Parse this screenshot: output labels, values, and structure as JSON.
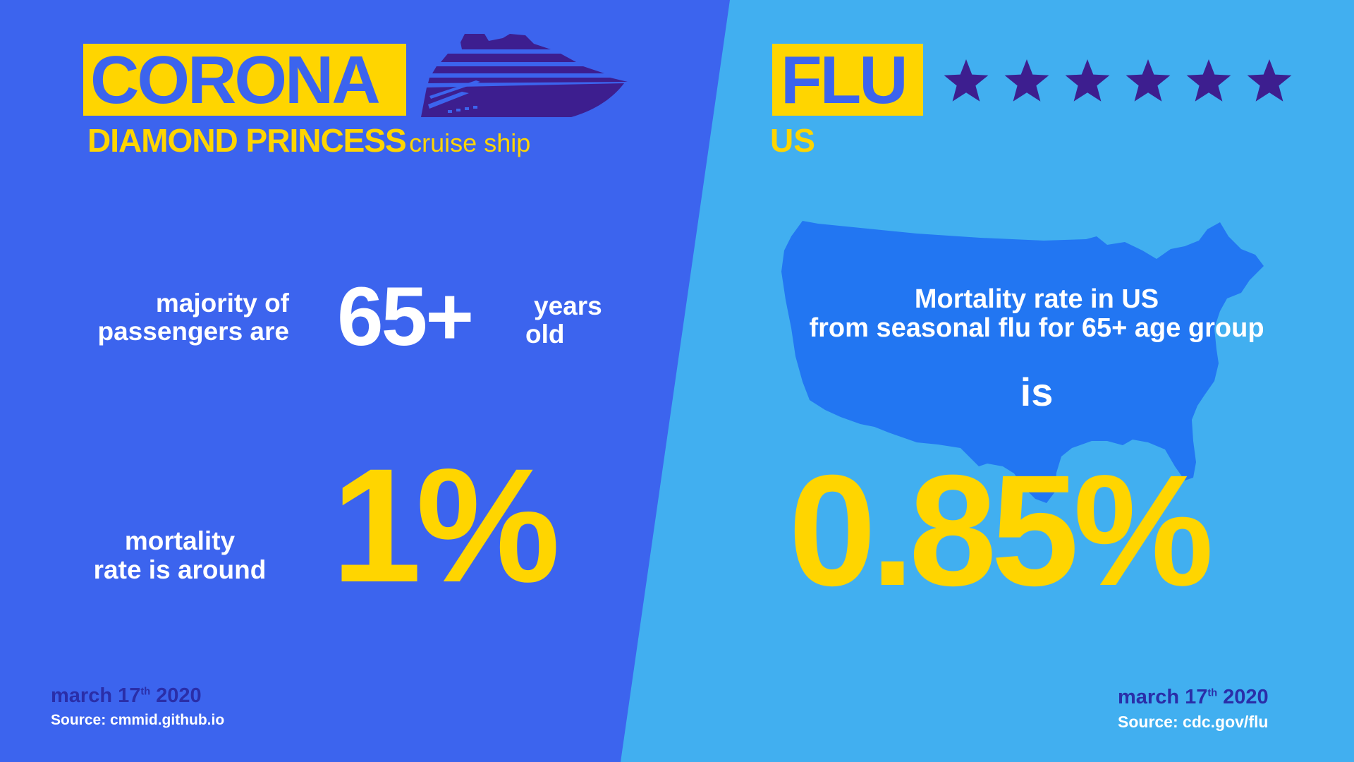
{
  "colors": {
    "left_bg": "#3c64ee",
    "right_bg": "#41aff0",
    "map_fill": "#2276f2",
    "yellow": "#ffd500",
    "purple": "#3d1e8f",
    "white": "#ffffff",
    "navy": "#2a2ea8"
  },
  "left": {
    "label": "CORONA",
    "ship_icon": "cruise-ship-icon",
    "subtitle_main": "DIAMOND PRINCESS",
    "subtitle_small": "cruise ship",
    "age_prefix_line1": "majority of",
    "age_prefix_line2": "passengers are",
    "age_value": "65+",
    "age_suffix_line1": "years",
    "age_suffix_line2": "old",
    "mortality_line1": "mortality",
    "mortality_line2": "rate is around",
    "mortality_value": "1%",
    "date_prefix": "march 17",
    "date_sup": "th",
    "date_year": "2020",
    "source": "Source: cmmid.github.io"
  },
  "right": {
    "label": "FLU",
    "stars_icon": "star-icon",
    "stars_count": 6,
    "subtitle": "US",
    "map_icon": "us-map-icon",
    "text_line1": "Mortality rate in US",
    "text_line2": "from seasonal flu for 65+ age group",
    "text_is": "is",
    "mortality_value": "0.85%",
    "date_prefix": "march 17",
    "date_sup": "th",
    "date_year": "2020",
    "source": "Source: cdc.gov/flu"
  }
}
